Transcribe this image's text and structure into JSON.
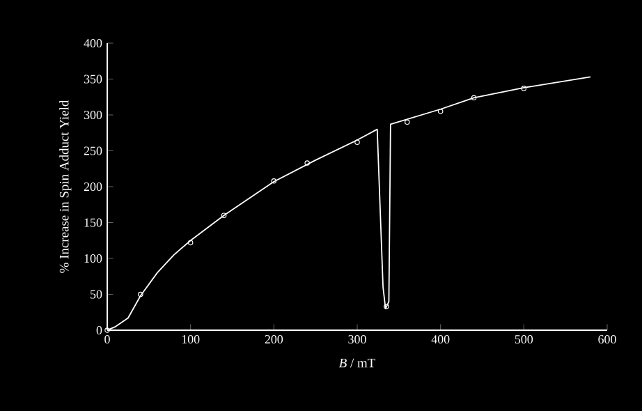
{
  "chart_data": {
    "type": "scatter",
    "xlabel": "*B* / mT",
    "ylabel": "% Increase in Spin Adduct Yield",
    "xlim": [
      0,
      600
    ],
    "xticks": [
      0,
      100,
      200,
      300,
      400,
      500,
      600
    ],
    "ylim": [
      0,
      400
    ],
    "yticks": [
      0,
      50,
      100,
      150,
      200,
      250,
      300,
      350,
      400
    ],
    "grid": false,
    "series": [
      {
        "color": "#ffffff",
        "marker": "circle",
        "x": [
          0,
          40,
          100,
          140,
          200,
          240,
          300,
          335,
          360,
          400,
          440,
          500
        ],
        "values": [
          0,
          50,
          122,
          160,
          208,
          233,
          262,
          33,
          290,
          305,
          324,
          337
        ]
      },
      {
        "type": "line",
        "color": "#ffffff",
        "marker": "none",
        "line_style": "solid",
        "x": [
          0,
          10,
          25,
          40,
          60,
          80,
          100,
          140,
          200,
          250,
          300,
          324,
          331,
          334,
          338,
          340,
          400,
          440,
          500,
          580
        ],
        "values": [
          0,
          5,
          17,
          48,
          80,
          105,
          125,
          160,
          207,
          237,
          265,
          280,
          60,
          30,
          40,
          287,
          308,
          324,
          338,
          353
        ]
      }
    ]
  }
}
